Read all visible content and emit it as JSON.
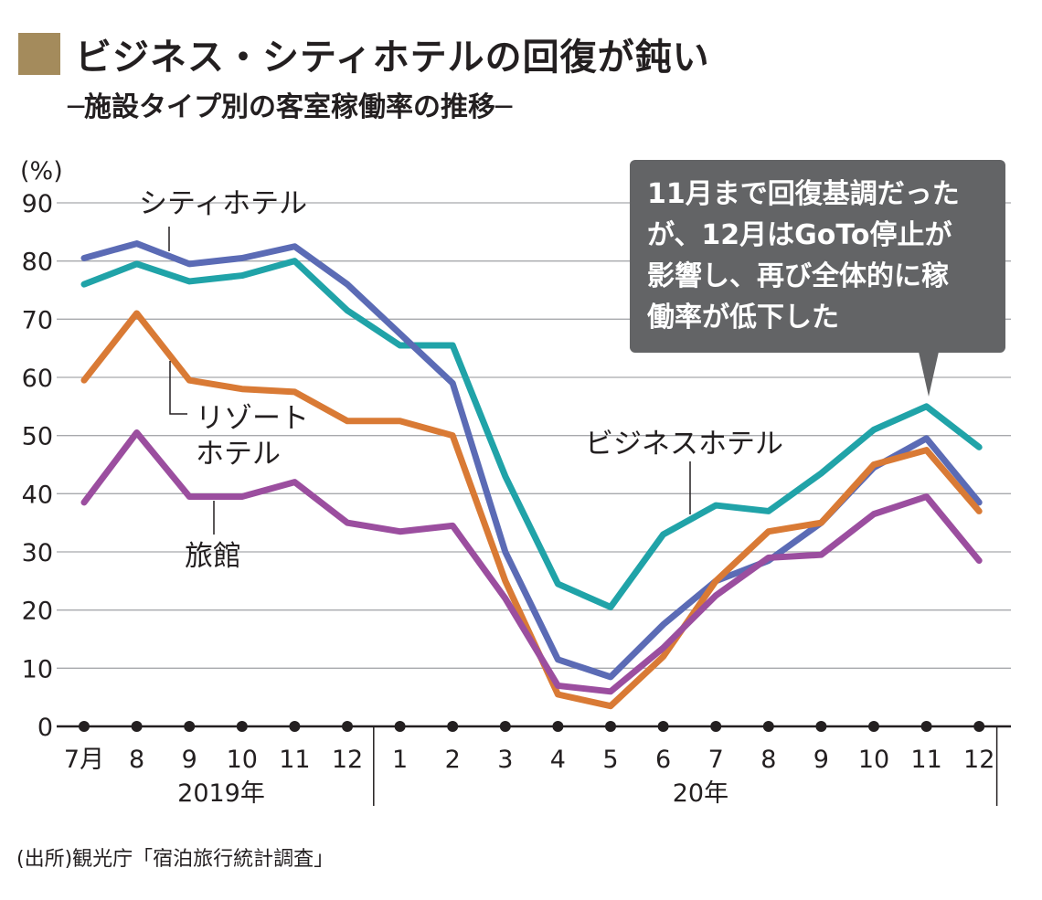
{
  "title": "ビジネス・シティホテルの回復が鈍い",
  "subtitle": "─施設タイプ別の客室稼働率の推移─",
  "source": "(出所)観光庁「宿泊旅行統計調査」",
  "colors": {
    "city": "#5b6bb5",
    "business": "#20a3a8",
    "resort": "#d97a35",
    "ryokan": "#9b4e9f",
    "grid": "#a7a9ac",
    "callout": "#636466",
    "title_square": "#a48b5c"
  },
  "chart_data": {
    "type": "line",
    "ylabel": "(%)",
    "ylim": [
      0,
      90
    ],
    "yticks": [
      "0",
      "10",
      "20",
      "30",
      "40",
      "50",
      "60",
      "70",
      "80",
      "90"
    ],
    "categories": [
      "7月",
      "8",
      "9",
      "10",
      "11",
      "12",
      "1",
      "2",
      "3",
      "4",
      "5",
      "6",
      "7",
      "8",
      "9",
      "10",
      "11",
      "12"
    ],
    "year_labels": [
      "2019年",
      "20年"
    ],
    "grid": true,
    "series": [
      {
        "key": "business",
        "name": "ビジネスホテル",
        "values": [
          76,
          79.5,
          76.5,
          77.5,
          80,
          71.5,
          65.5,
          65.5,
          43,
          24.5,
          20.5,
          33,
          38,
          37,
          43.5,
          51,
          55,
          48
        ]
      },
      {
        "key": "city",
        "name": "シティホテル",
        "values": [
          80.5,
          83,
          79.5,
          80.5,
          82.5,
          76,
          67.5,
          59,
          30,
          11.5,
          8.5,
          17.5,
          25,
          28.5,
          35,
          44.5,
          49.5,
          38.5
        ]
      },
      {
        "key": "resort",
        "name": "リゾートホテル",
        "values": [
          59.5,
          71,
          59.5,
          58,
          57.5,
          52.5,
          52.5,
          50,
          25,
          5.5,
          3.5,
          12,
          25,
          33.5,
          35,
          45,
          47.5,
          37
        ]
      },
      {
        "key": "ryokan",
        "name": "旅館",
        "values": [
          38.5,
          50.5,
          39.5,
          39.5,
          42,
          35,
          33.5,
          34.5,
          22,
          7,
          6,
          13.5,
          22.5,
          29,
          29.5,
          36.5,
          39.5,
          28.5
        ]
      }
    ],
    "labels": {
      "city": "シティホテル",
      "resort_line1": "リゾート",
      "resort_line2": "ホテル",
      "ryokan": "旅館",
      "business": "ビジネスホテル"
    },
    "annotation": {
      "lines": [
        "11月まで回復基調だった",
        "が、12月はGoTo停止が",
        "影響し、再び全体的に稼",
        "働率が低下した"
      ]
    }
  }
}
